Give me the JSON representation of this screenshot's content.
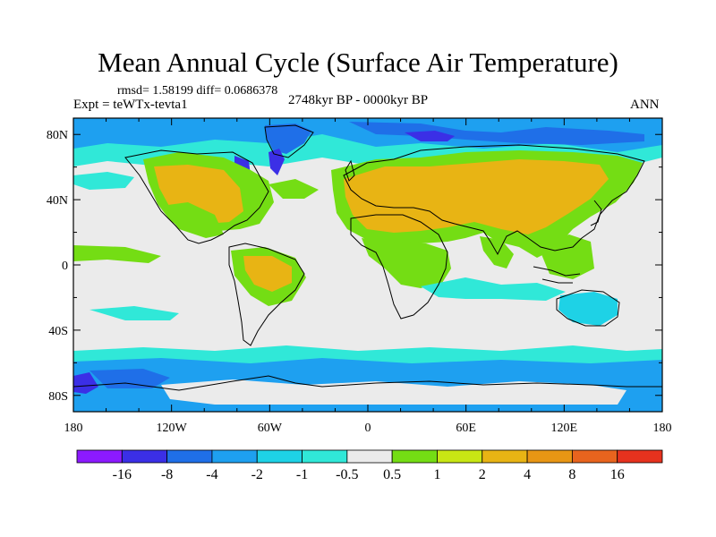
{
  "header": {
    "title": "Mean Annual Cycle (Surface Air Temperature)",
    "stats": "rmsd= 1.58199 diff= 0.0686378",
    "experiment": "Expt = teWTx-tevta1",
    "period": "2748kyr BP - 0000kyr BP",
    "season": "ANN"
  },
  "map": {
    "lat_range": [
      -90,
      90
    ],
    "lon_range": [
      -180,
      180
    ],
    "lat_ticks": [
      {
        "value": 80,
        "label": "80N"
      },
      {
        "value": 40,
        "label": "40N"
      },
      {
        "value": 0,
        "label": "0"
      },
      {
        "value": -40,
        "label": "40S"
      },
      {
        "value": -80,
        "label": "80S"
      }
    ],
    "lon_ticks": [
      {
        "value": -180,
        "label": "180"
      },
      {
        "value": -120,
        "label": "120W"
      },
      {
        "value": -60,
        "label": "60W"
      },
      {
        "value": 0,
        "label": "0"
      },
      {
        "value": 60,
        "label": "60E"
      },
      {
        "value": 120,
        "label": "120E"
      },
      {
        "value": 180,
        "label": "180"
      }
    ]
  },
  "colorbar": {
    "colors": [
      "#8c1aff",
      "#3b2fe6",
      "#1f6fe8",
      "#1ea0f0",
      "#1ed2e6",
      "#30e8d8",
      "#ebebeb",
      "#74dd14",
      "#c8e614",
      "#e8b414",
      "#e89614",
      "#e8641e",
      "#e6321e"
    ],
    "labels": [
      "-16",
      "-8",
      "-4",
      "-2",
      "-1",
      "-0.5",
      "0.5",
      "1",
      "2",
      "4",
      "8",
      "16"
    ]
  },
  "palette": {
    "neutral": "#ebebeb",
    "warm_1": "#74dd14",
    "warm_2": "#c8e614",
    "warm_4": "#e8b414",
    "cool_05": "#30e8d8",
    "cool_1": "#1ed2e6",
    "cool_2": "#1ea0f0",
    "cool_4": "#1f6fe8",
    "cool_8": "#3b2fe6"
  }
}
